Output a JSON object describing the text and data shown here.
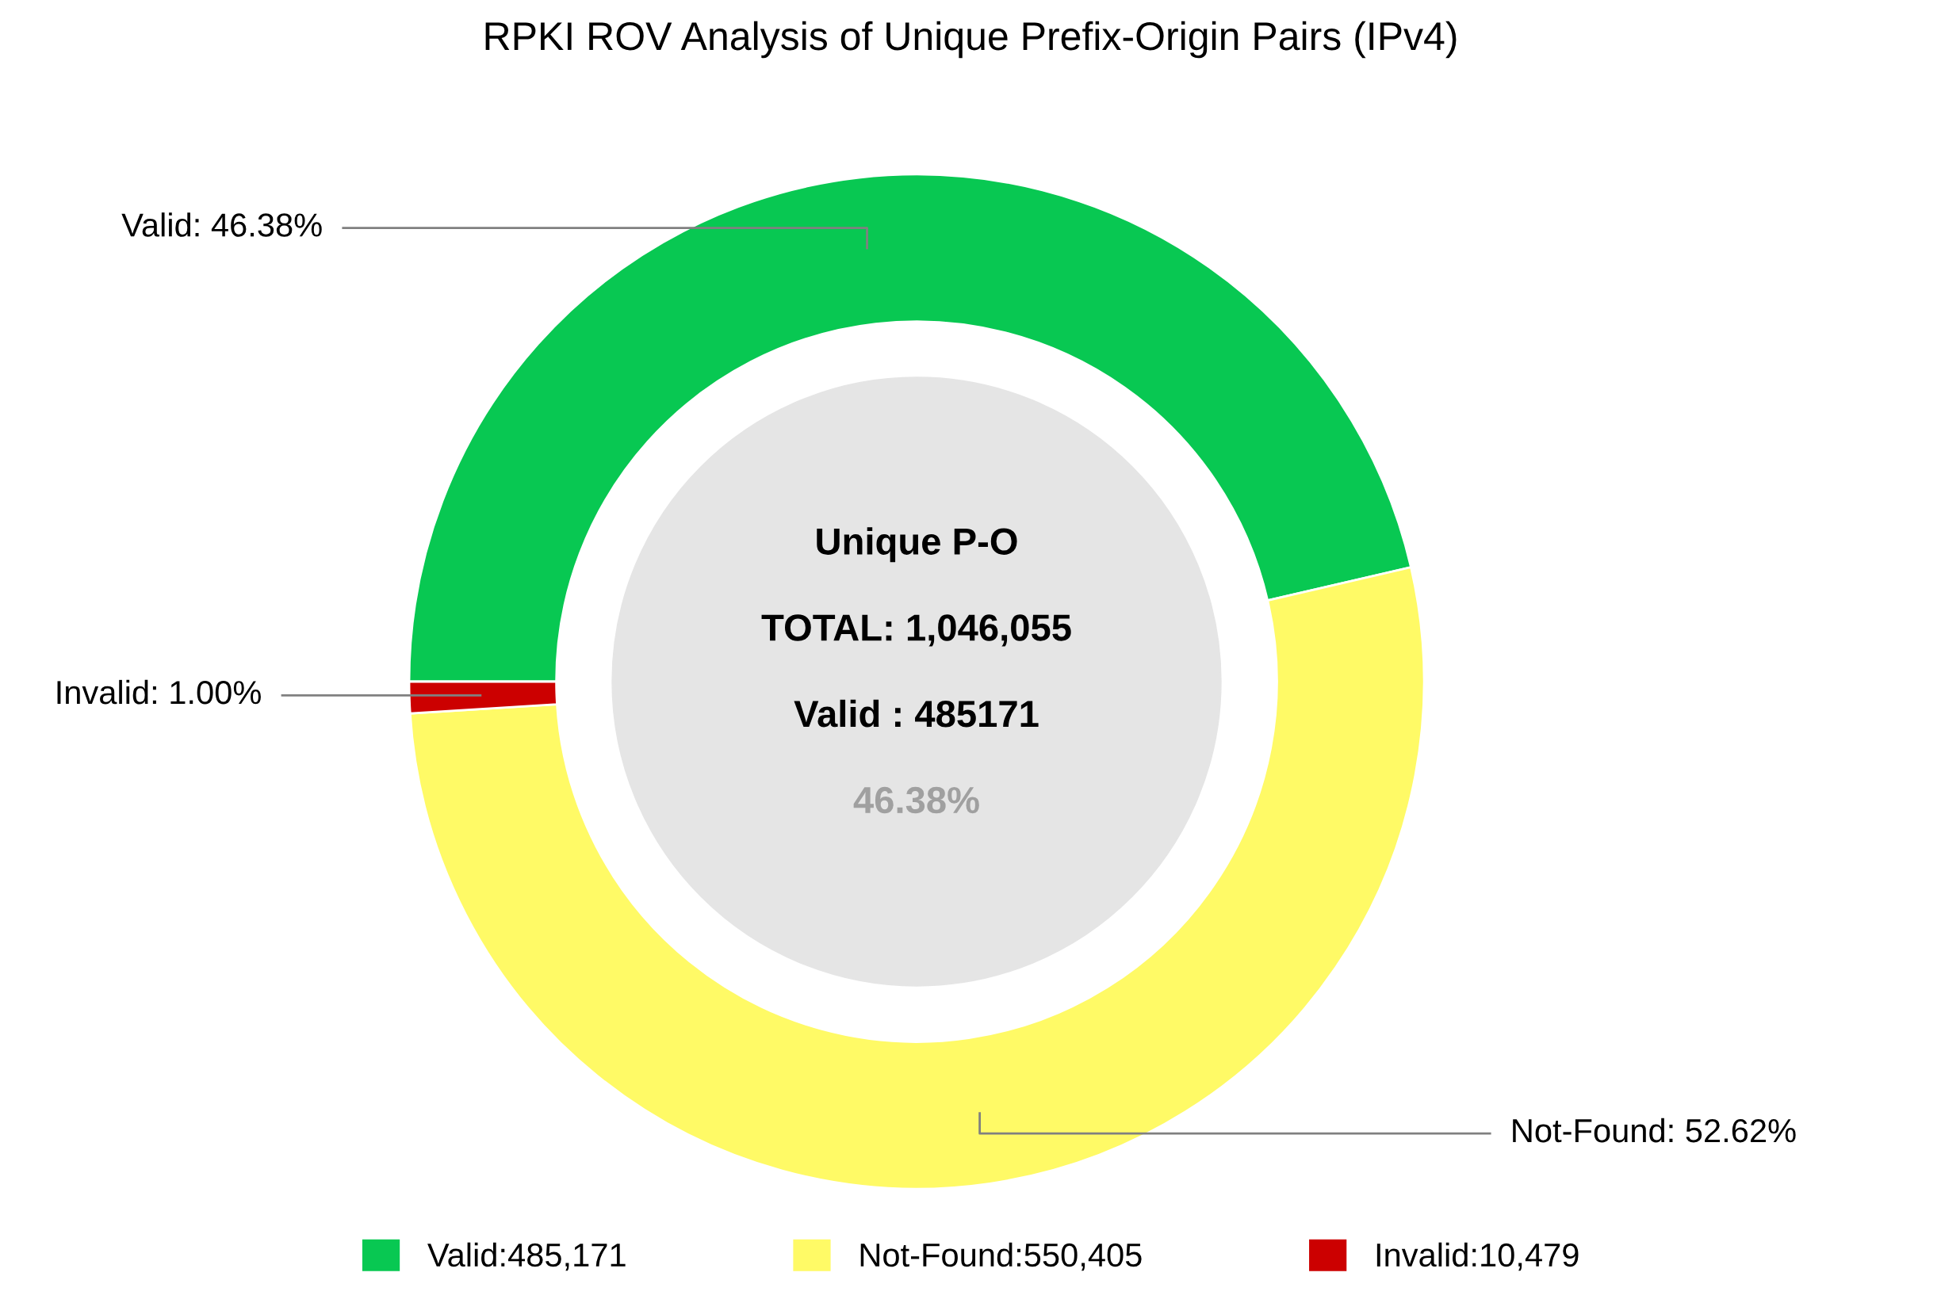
{
  "chart_data": {
    "type": "donut",
    "title": "RPKI ROV Analysis of Unique Prefix-Origin Pairs (IPv4)",
    "categories": [
      "Valid:485,171",
      "Not-Found:550,405",
      "Invalid:10,479"
    ],
    "values": [
      46.38,
      52.62,
      1.0
    ],
    "value_labels": [
      "Valid: 46.38%",
      "Not-Found: 52.62%",
      "Invalid: 1.00%"
    ],
    "colors": [
      "#08c852",
      "#fffa66",
      "#cc0000"
    ],
    "annotations": [
      "Unique P-O",
      "TOTAL: 1,046,055",
      "Valid : 485171",
      "46.38%"
    ],
    "legend": "bottom"
  }
}
